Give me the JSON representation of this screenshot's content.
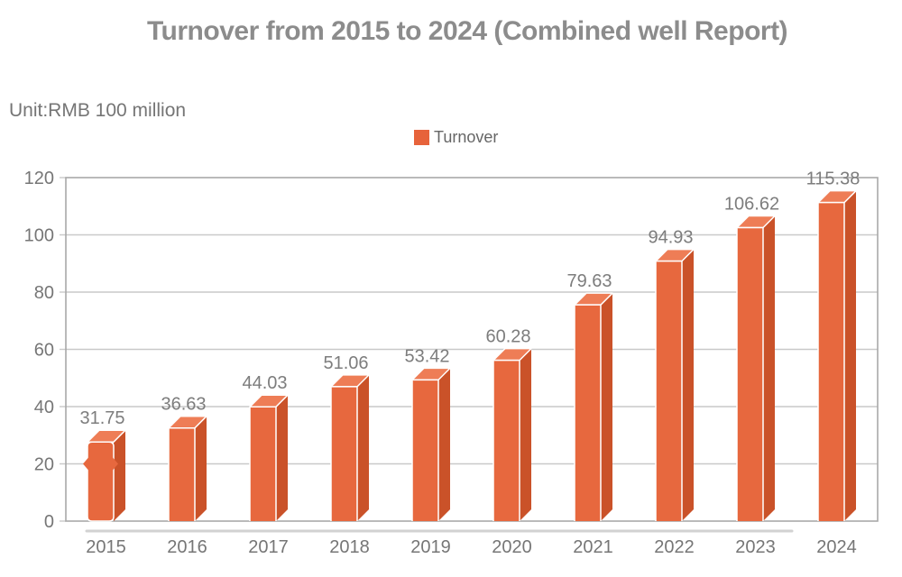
{
  "title": "Turnover from 2015 to 2024 (Combined well Report)",
  "unit_label": "Unit:RMB 100 million",
  "legend": {
    "label": "Turnover",
    "swatch_color": "#e7633b"
  },
  "chart_data": {
    "type": "bar",
    "title": "Turnover from 2015 to 2024 (Combined well Report)",
    "xlabel": "",
    "ylabel": "Unit:RMB 100 million",
    "categories": [
      "2015",
      "2016",
      "2017",
      "2018",
      "2019",
      "2020",
      "2021",
      "2022",
      "2023",
      "2024"
    ],
    "series": [
      {
        "name": "Turnover",
        "values": [
          31.75,
          36.63,
          44.03,
          51.06,
          53.42,
          60.28,
          79.63,
          94.93,
          106.62,
          115.38
        ]
      }
    ],
    "data_labels": [
      "31.75",
      "36.63",
      "44.03",
      "51.06",
      "53.42",
      "60.28",
      "79.63",
      "94.93",
      "106.62",
      "115.38"
    ],
    "ylim": [
      0,
      120
    ],
    "yticks": [
      0,
      20,
      40,
      60,
      80,
      100,
      120
    ],
    "grid": true,
    "legend_position": "top-center",
    "bar_style": "3d",
    "colors": {
      "bar_front": "#e7683e",
      "bar_side": "#ca5229",
      "bar_top": "#ee7d56",
      "edge": "#ffffff",
      "grid": "#c9c9c9",
      "axis_border": "#a8a8a8",
      "shadow": "#d2d2d2",
      "tick_label": "#767676",
      "value_label": "#7d7d7d"
    }
  }
}
